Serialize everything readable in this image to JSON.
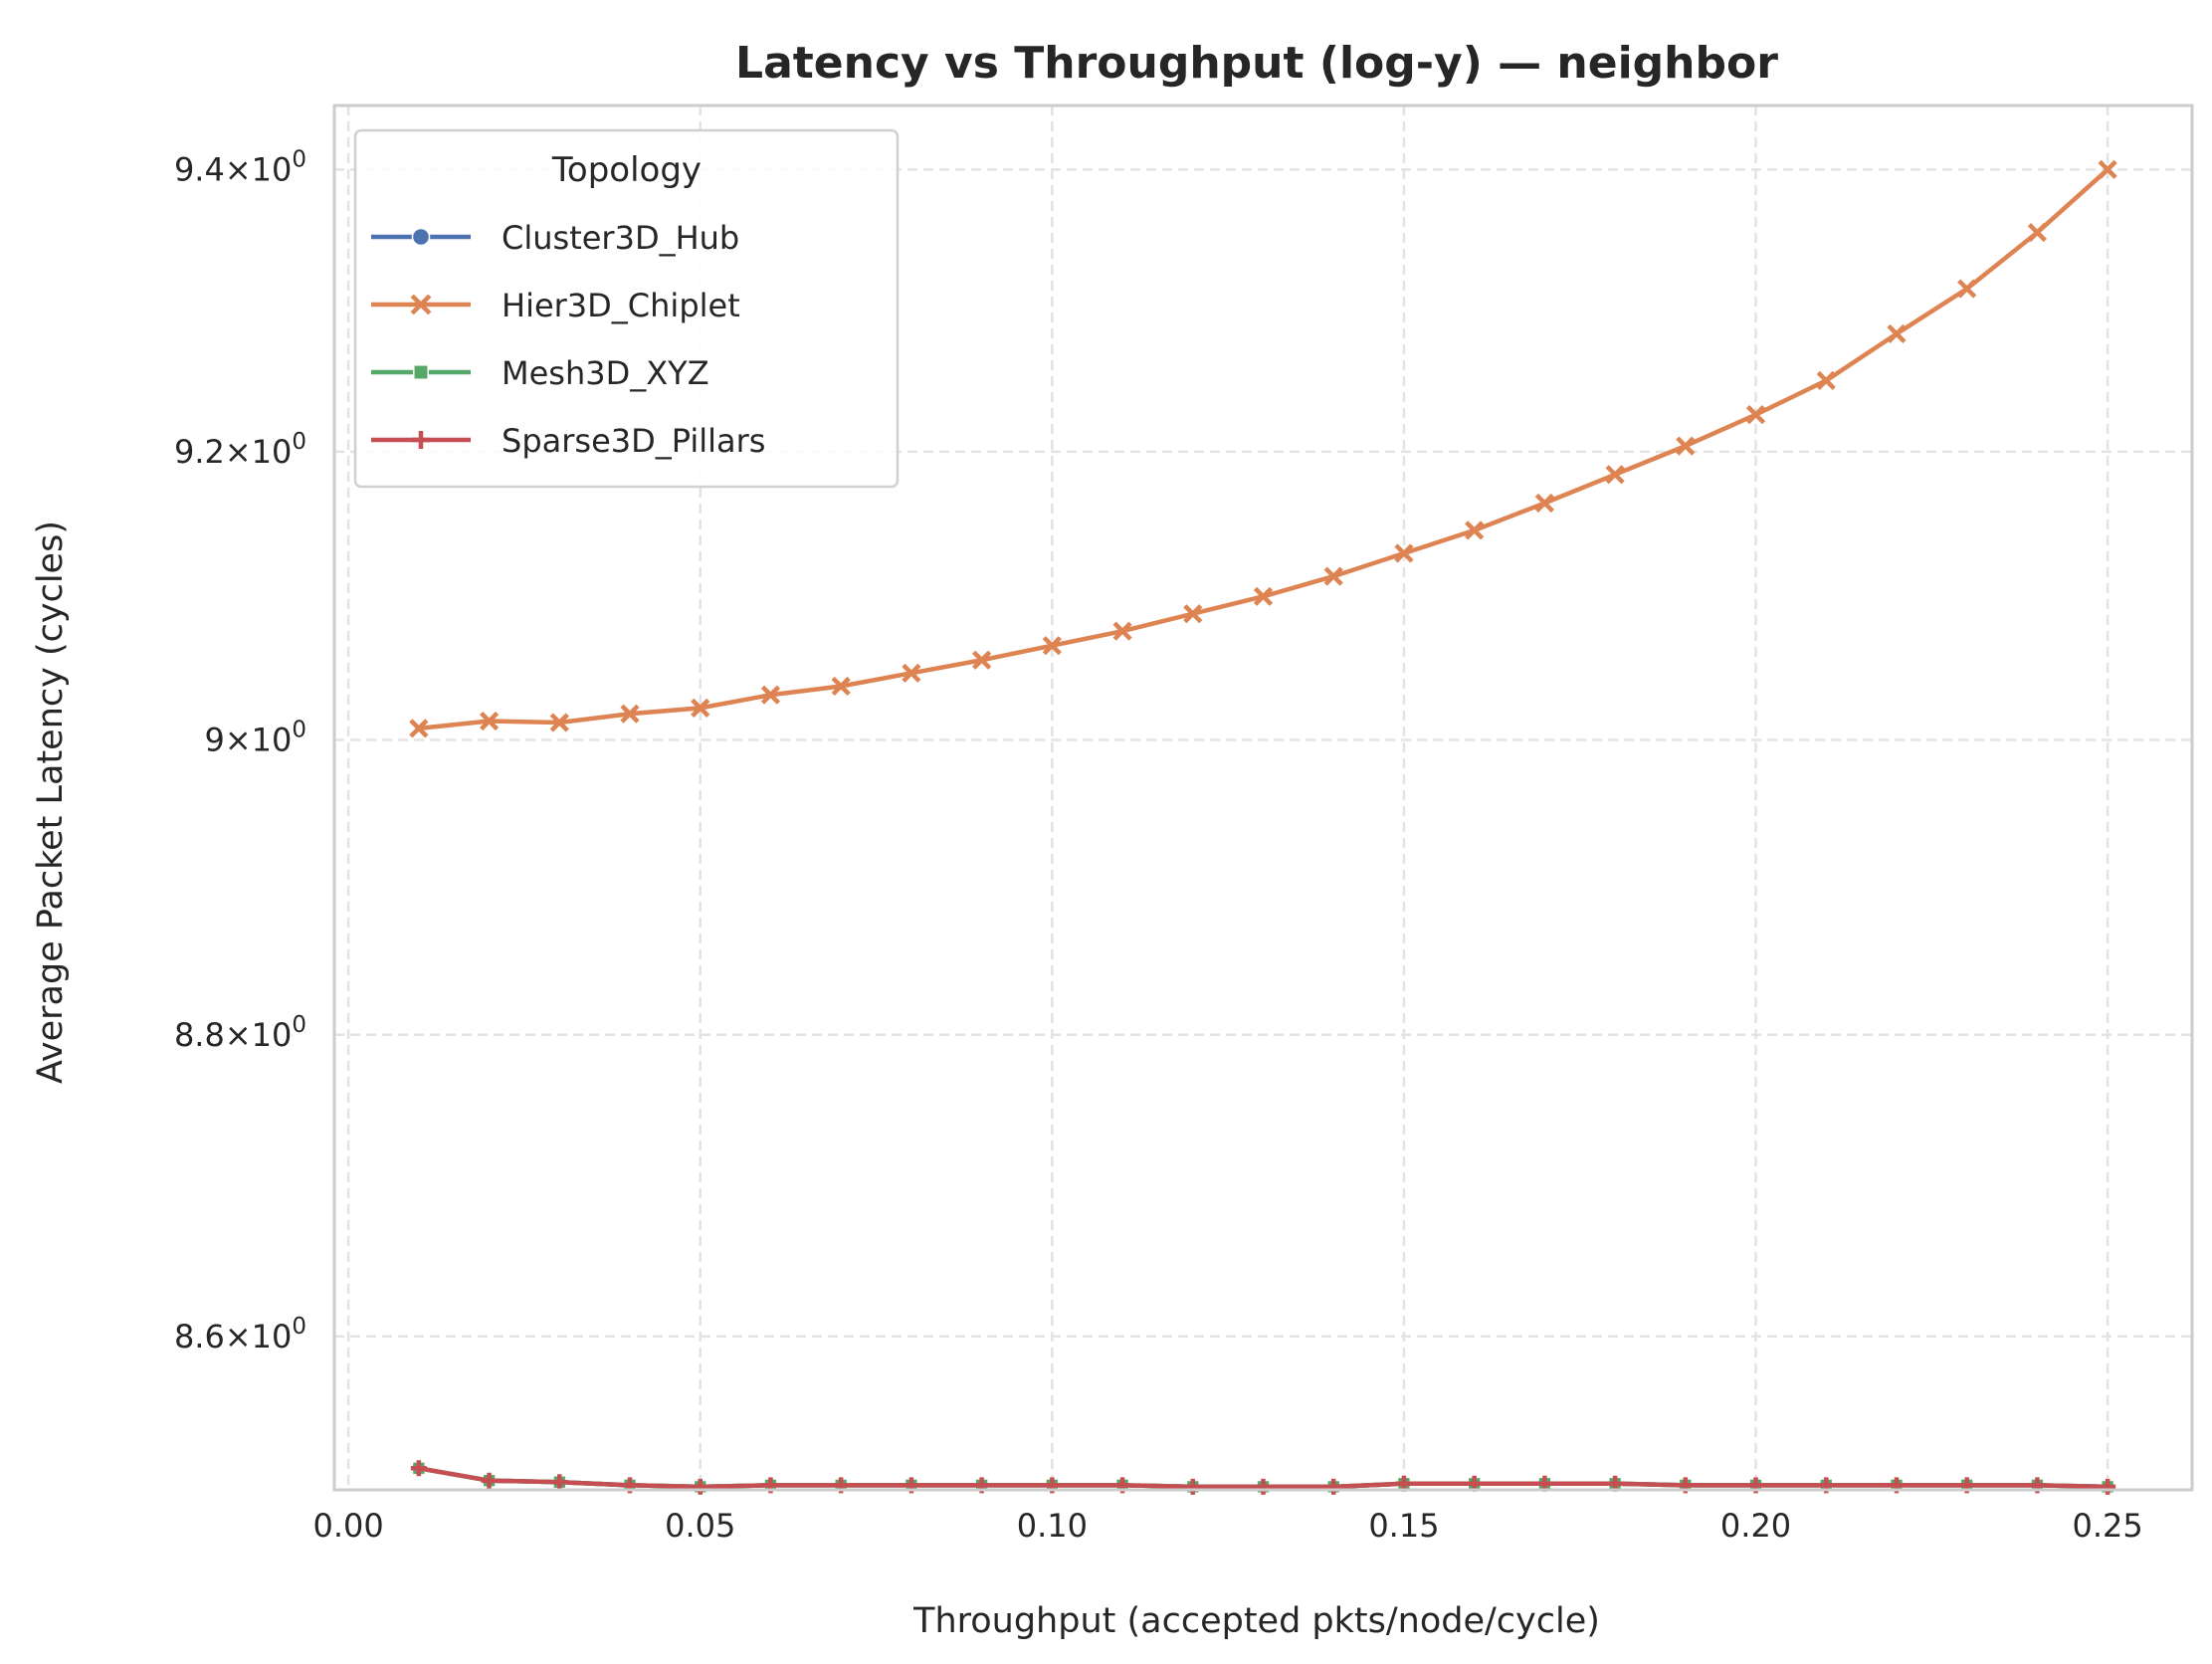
{
  "chart_data": {
    "type": "line",
    "title": "Latency vs Throughput (log-y) — neighbor",
    "xlabel": "Throughput (accepted pkts/node/cycle)",
    "ylabel": "Average Packet Latency (cycles)",
    "xlim": [
      -0.002,
      0.262
    ],
    "ylim": [
      8.5,
      9.446
    ],
    "yscale": "log",
    "grid": true,
    "x_ticks": [
      {
        "value": 0.0,
        "label": "0.00"
      },
      {
        "value": 0.05,
        "label": "0.05"
      },
      {
        "value": 0.1,
        "label": "0.10"
      },
      {
        "value": 0.15,
        "label": "0.15"
      },
      {
        "value": 0.2,
        "label": "0.20"
      },
      {
        "value": 0.25,
        "label": "0.25"
      }
    ],
    "y_ticks": [
      {
        "value": 8.6,
        "mantissa": "8.6"
      },
      {
        "value": 8.8,
        "mantissa": "8.8"
      },
      {
        "value": 9.0,
        "mantissa": "9"
      },
      {
        "value": 9.2,
        "mantissa": "9.2"
      },
      {
        "value": 9.4,
        "mantissa": "9.4"
      }
    ],
    "y_tick_suffix": "×10",
    "y_tick_exponent": "0",
    "legend": {
      "title": "Topology",
      "placement": "top-left"
    },
    "x": [
      0.01,
      0.02,
      0.03,
      0.04,
      0.05,
      0.06,
      0.07,
      0.08,
      0.09,
      0.1,
      0.11,
      0.12,
      0.13,
      0.14,
      0.15,
      0.16,
      0.17,
      0.18,
      0.19,
      0.2,
      0.21,
      0.22,
      0.23,
      0.24,
      0.25
    ],
    "series": [
      {
        "name": "Cluster3D_Hub",
        "color": "#4c72b0",
        "marker": "circle",
        "values": [
          8.514,
          8.506,
          8.505,
          8.503,
          8.502,
          8.503,
          8.503,
          8.503,
          8.503,
          8.503,
          8.503,
          8.502,
          8.502,
          8.502,
          8.504,
          8.504,
          8.504,
          8.504,
          8.503,
          8.503,
          8.503,
          8.503,
          8.503,
          8.503,
          8.502
        ]
      },
      {
        "name": "Hier3D_Chiplet",
        "color": "#dd8452",
        "marker": "x",
        "values": [
          9.008,
          9.013,
          9.012,
          9.018,
          9.022,
          9.031,
          9.037,
          9.046,
          9.055,
          9.065,
          9.075,
          9.087,
          9.099,
          9.113,
          9.129,
          9.145,
          9.164,
          9.184,
          9.204,
          9.226,
          9.25,
          9.283,
          9.315,
          9.355,
          9.4
        ]
      },
      {
        "name": "Mesh3D_XYZ",
        "color": "#55a868",
        "marker": "square",
        "values": [
          8.514,
          8.506,
          8.505,
          8.503,
          8.502,
          8.503,
          8.503,
          8.503,
          8.503,
          8.503,
          8.503,
          8.502,
          8.502,
          8.502,
          8.504,
          8.504,
          8.504,
          8.504,
          8.503,
          8.503,
          8.503,
          8.503,
          8.503,
          8.503,
          8.502
        ]
      },
      {
        "name": "Sparse3D_Pillars",
        "color": "#c44e52",
        "marker": "plus",
        "values": [
          8.514,
          8.506,
          8.505,
          8.503,
          8.502,
          8.503,
          8.503,
          8.503,
          8.503,
          8.503,
          8.503,
          8.502,
          8.502,
          8.502,
          8.504,
          8.504,
          8.504,
          8.504,
          8.503,
          8.503,
          8.503,
          8.503,
          8.503,
          8.503,
          8.502
        ]
      }
    ]
  }
}
